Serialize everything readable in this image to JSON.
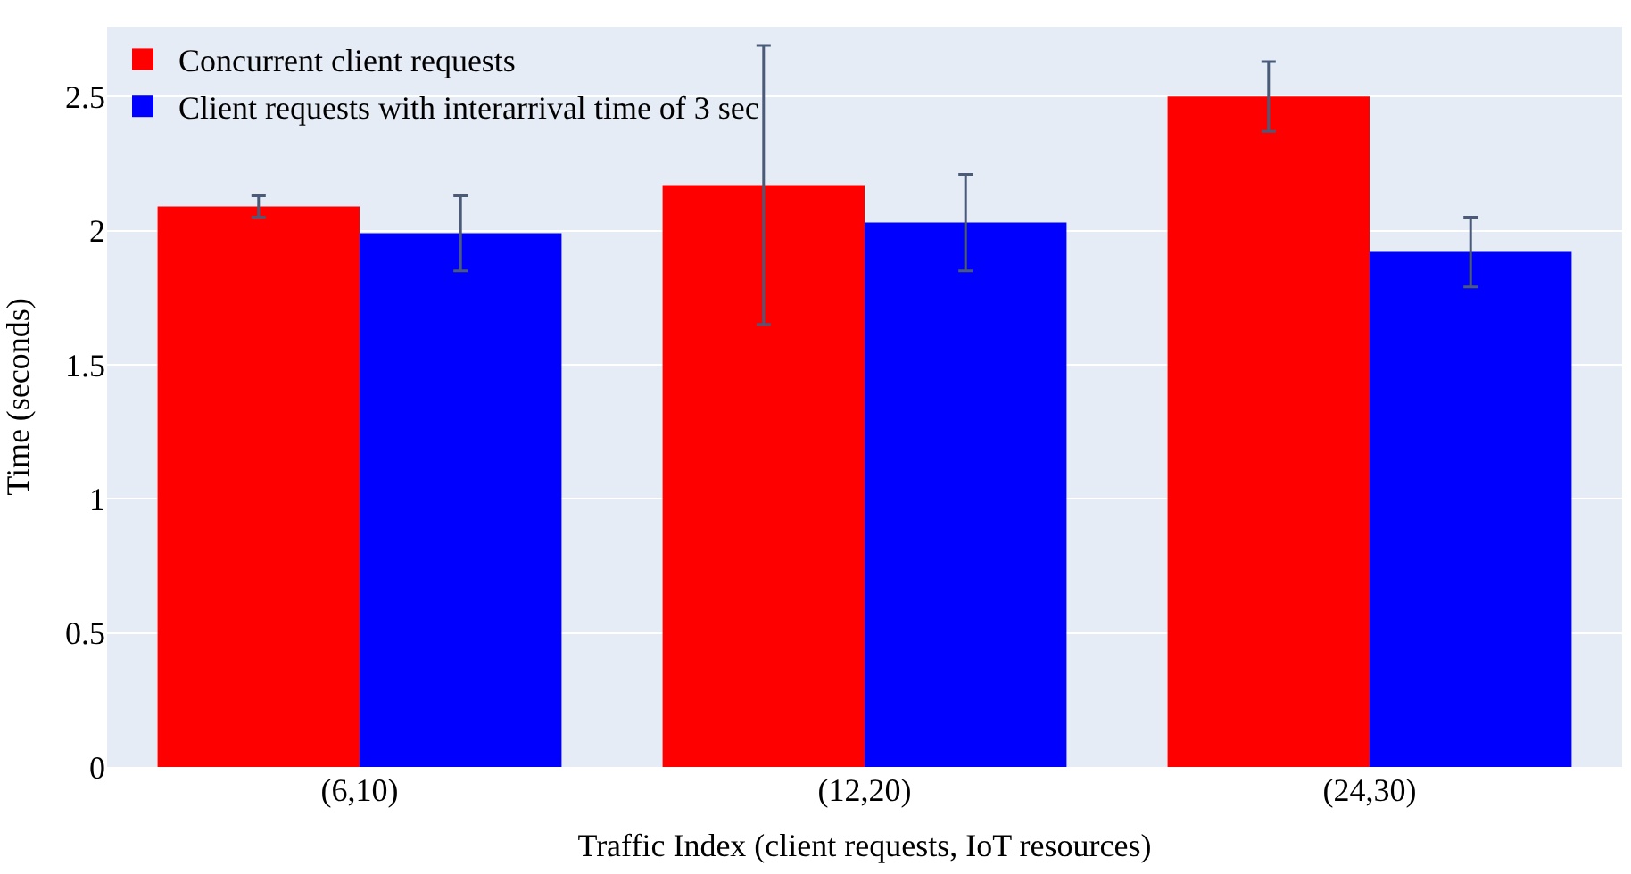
{
  "chart_data": {
    "type": "bar",
    "xlabel": "Traffic Index (client requests, IoT resources)",
    "ylabel": "Time (seconds)",
    "categories": [
      "(6,10)",
      "(12,20)",
      "(24,30)"
    ],
    "series": [
      {
        "name": "Concurrent client requests",
        "color": "#ff0000",
        "values": [
          2.09,
          2.17,
          2.5
        ],
        "errors": [
          0.04,
          0.52,
          0.13
        ]
      },
      {
        "name": "Client requests with interarrival time of 3 sec",
        "color": "#0000ff",
        "values": [
          1.99,
          2.03,
          1.92
        ],
        "errors": [
          0.14,
          0.18,
          0.13
        ]
      }
    ],
    "ylim": [
      0,
      2.76
    ],
    "yticks": [
      0,
      0.5,
      1,
      1.5,
      2,
      2.5
    ],
    "grid": "y",
    "legend": "top left"
  }
}
